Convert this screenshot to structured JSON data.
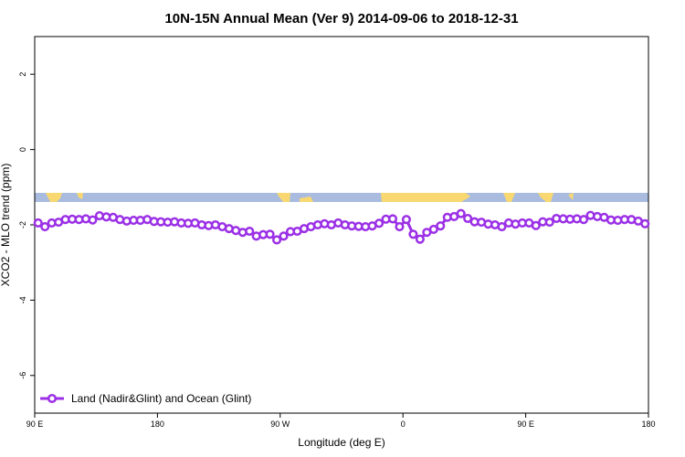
{
  "chart_data": {
    "type": "line",
    "title": "10N-15N Annual Mean (Ver 9)   2014-09-06 to 2018-12-31",
    "x_label": "Longitude (deg E)",
    "y_label": "XCO2 - MLO trend (ppm)",
    "x": [
      92.5,
      97.5,
      102.5,
      107.5,
      112.5,
      117.5,
      122.5,
      127.5,
      132.5,
      137.5,
      142.5,
      147.5,
      152.5,
      157.5,
      162.5,
      167.5,
      172.5,
      177.5,
      182.5,
      187.5,
      192.5,
      197.5,
      202.5,
      207.5,
      212.5,
      217.5,
      222.5,
      227.5,
      232.5,
      237.5,
      242.5,
      247.5,
      252.5,
      257.5,
      262.5,
      267.5,
      272.5,
      277.5,
      282.5,
      287.5,
      292.5,
      297.5,
      302.5,
      307.5,
      312.5,
      317.5,
      322.5,
      327.5,
      332.5,
      337.5,
      342.5,
      347.5,
      352.5,
      357.5,
      362.5,
      367.5,
      372.5,
      377.5,
      382.5,
      387.5,
      392.5,
      397.5,
      402.5,
      407.5,
      412.5,
      417.5,
      422.5,
      427.5,
      432.5,
      437.5,
      442.5,
      447.5,
      452.5,
      457.5,
      462.5,
      467.5,
      472.5,
      477.5,
      482.5,
      487.5,
      492.5,
      497.5,
      502.5,
      507.5,
      512.5,
      517.5,
      522.5,
      527.5,
      532.5,
      537.5
    ],
    "series": [
      {
        "name": "Land (Nadir&Glint) and Ocean (Glint)",
        "color": "#9b30e6",
        "values": [
          -1.95,
          -2.05,
          -1.95,
          -1.93,
          -1.86,
          -1.85,
          -1.86,
          -1.84,
          -1.87,
          -1.76,
          -1.79,
          -1.8,
          -1.86,
          -1.9,
          -1.88,
          -1.88,
          -1.86,
          -1.91,
          -1.92,
          -1.93,
          -1.92,
          -1.95,
          -1.96,
          -1.95,
          -2.0,
          -2.02,
          -2.0,
          -2.05,
          -2.1,
          -2.15,
          -2.2,
          -2.17,
          -2.3,
          -2.26,
          -2.25,
          -2.4,
          -2.3,
          -2.18,
          -2.17,
          -2.1,
          -2.05,
          -2.0,
          -1.97,
          -2.0,
          -1.95,
          -2.0,
          -2.03,
          -2.04,
          -2.05,
          -2.03,
          -1.96,
          -1.85,
          -1.84,
          -2.05,
          -1.86,
          -2.25,
          -2.38,
          -2.2,
          -2.12,
          -2.03,
          -1.8,
          -1.78,
          -1.7,
          -1.83,
          -1.92,
          -1.93,
          -1.98,
          -2.0,
          -2.05,
          -1.95,
          -1.98,
          -1.95,
          -1.95,
          -2.02,
          -1.92,
          -1.93,
          -1.83,
          -1.84,
          -1.85,
          -1.84,
          -1.86,
          -1.75,
          -1.78,
          -1.8,
          -1.87,
          -1.88,
          -1.86,
          -1.86,
          -1.9,
          -1.97
        ]
      }
    ],
    "xlim": [
      90,
      540
    ],
    "ylim": [
      -7,
      3
    ],
    "xticks": [
      {
        "value": 90,
        "label": "90 E"
      },
      {
        "value": 180,
        "label": "180"
      },
      {
        "value": 270,
        "label": "90 W"
      },
      {
        "value": 360,
        "label": "0"
      },
      {
        "value": 450,
        "label": "90 E"
      },
      {
        "value": 540,
        "label": "180"
      }
    ],
    "yticks": [
      -6,
      -4,
      -2,
      0,
      2
    ],
    "legend": "bottom-left"
  }
}
